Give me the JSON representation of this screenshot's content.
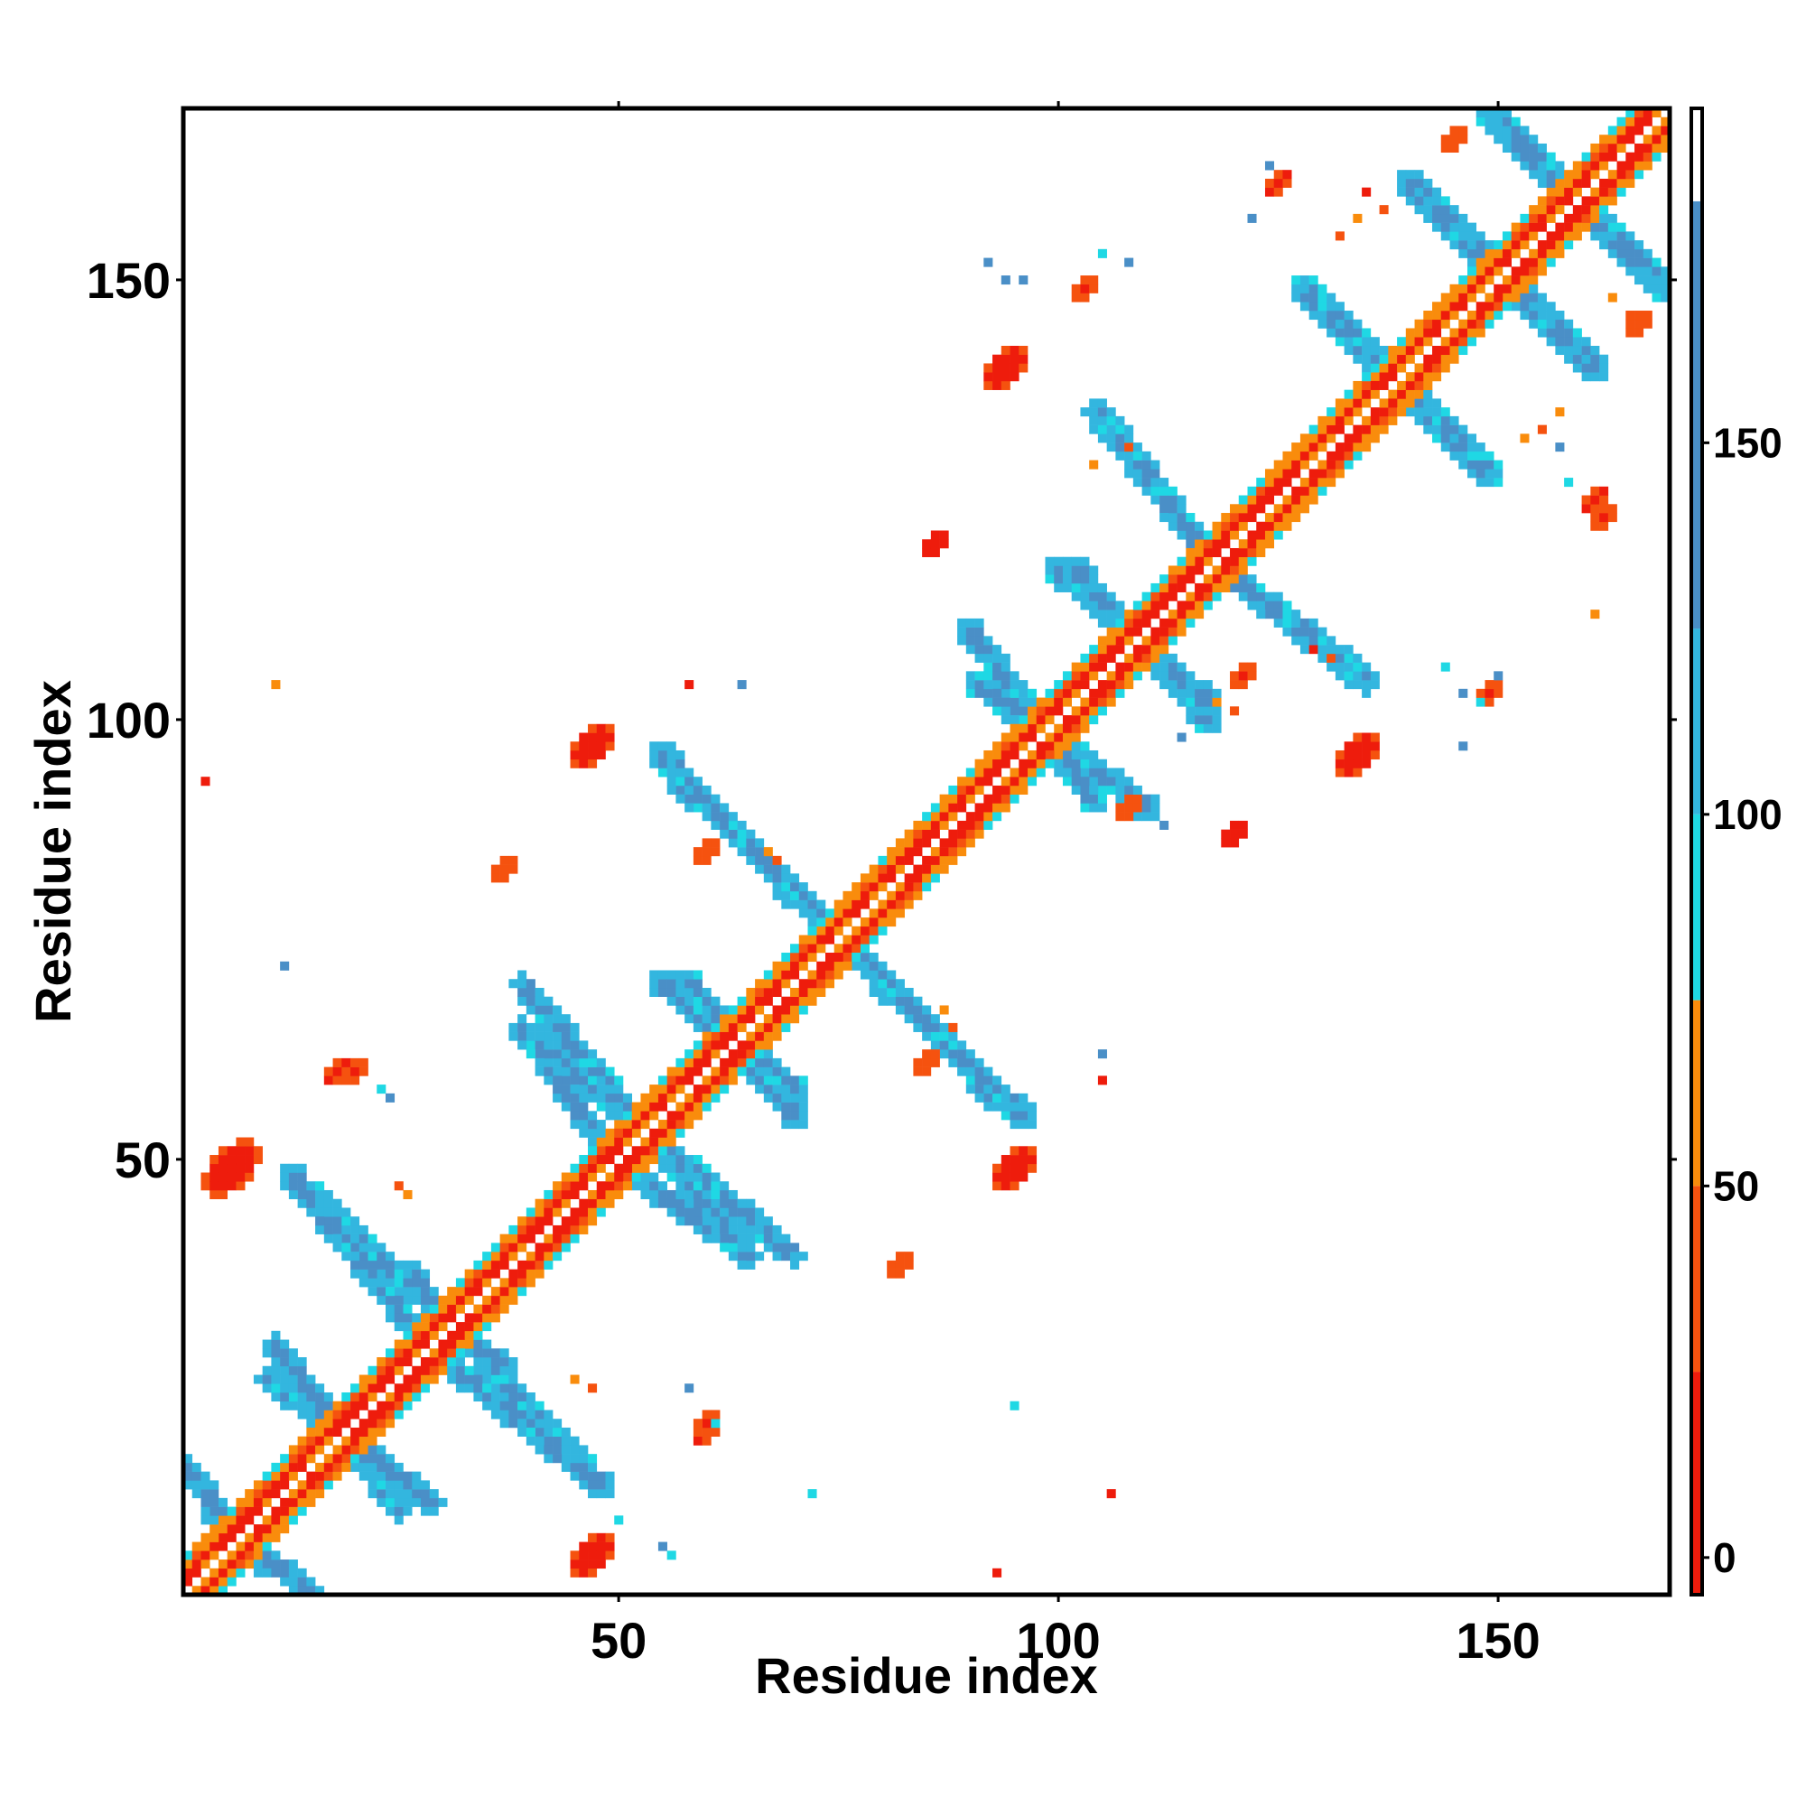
{
  "chart_data": {
    "type": "heatmap",
    "title": "",
    "xlabel": "Residue index",
    "ylabel": "Residue index",
    "xlim": [
      1,
      169
    ],
    "ylim": [
      1,
      169
    ],
    "xticks": [
      50,
      100,
      150
    ],
    "yticks": [
      50,
      100,
      150
    ],
    "grid": false,
    "colorbar": {
      "position": "right",
      "ticks": [
        0,
        50,
        100,
        150
      ],
      "range": [
        -5,
        195
      ],
      "bands": [
        {
          "from": -5,
          "to": 25,
          "color": "#ee1c0c"
        },
        {
          "from": 25,
          "to": 50,
          "color": "#f5520f"
        },
        {
          "from": 50,
          "to": 75,
          "color": "#f98c0c"
        },
        {
          "from": 75,
          "to": 100,
          "color": "#1fd8e4"
        },
        {
          "from": 100,
          "to": 125,
          "color": "#33b6df"
        },
        {
          "from": 125,
          "to": 182.5,
          "color": "#4a8fc7"
        },
        {
          "from": 182.5,
          "to": 195,
          "color": "#ffffff"
        }
      ]
    },
    "diagonal_band": {
      "value": 10,
      "color": "#ee1c0c",
      "accent_value": 60,
      "accent_color": "#f98c0c",
      "halfwidth": 2
    },
    "segments": [
      {
        "from": [
          4,
          9
        ],
        "to": [
          15,
          1
        ],
        "value": 140,
        "color": "#4a8fc7",
        "halfwidth": 1.4
      },
      {
        "from": [
          10,
          25
        ],
        "to": [
          29,
          11
        ],
        "value": 140,
        "color": "#4a8fc7",
        "halfwidth": 1.4
      },
      {
        "from": [
          15,
          46
        ],
        "to": [
          37,
          26
        ],
        "value": 140,
        "color": "#4a8fc7",
        "halfwidth": 1.5
      },
      {
        "from": [
          28,
          29
        ],
        "to": [
          48,
          13
        ],
        "value": 140,
        "color": "#4a8fc7",
        "halfwidth": 1.5
      },
      {
        "from": [
          39,
          65
        ],
        "to": [
          70,
          39
        ],
        "value": 140,
        "color": "#4a8fc7",
        "halfwidth": 1.4
      },
      {
        "from": [
          55,
          70
        ],
        "to": [
          70,
          58
        ],
        "value": 140,
        "color": "#4a8fc7",
        "halfwidth": 1.5
      },
      {
        "from": [
          52,
          48
        ],
        "to": [
          65,
          39
        ],
        "value": 140,
        "color": "#4a8fc7",
        "halfwidth": 1.4
      },
      {
        "from": [
          55,
          96
        ],
        "to": [
          70,
          80
        ],
        "value": 140,
        "color": "#4a8fc7",
        "halfwidth": 1.5
      },
      {
        "from": [
          75,
          76
        ],
        "to": [
          93,
          57
        ],
        "value": 140,
        "color": "#4a8fc7",
        "halfwidth": 1.5
      },
      {
        "from": [
          90,
          110
        ],
        "to": [
          104,
          91
        ],
        "value": 140,
        "color": "#4a8fc7",
        "halfwidth": 1.5
      },
      {
        "from": [
          100,
          117
        ],
        "to": [
          117,
          102
        ],
        "value": 140,
        "color": "#4a8fc7",
        "halfwidth": 1.5
      },
      {
        "from": [
          104,
          135
        ],
        "to": [
          118,
          118
        ],
        "value": 140,
        "color": "#4a8fc7",
        "halfwidth": 1.4
      },
      {
        "from": [
          117,
          118
        ],
        "to": [
          135,
          105
        ],
        "value": 140,
        "color": "#4a8fc7",
        "halfwidth": 1.4
      },
      {
        "from": [
          128,
          149
        ],
        "to": [
          146,
          131
        ],
        "value": 140,
        "color": "#4a8fc7",
        "halfwidth": 1.5
      },
      {
        "from": [
          140,
          161
        ],
        "to": [
          158,
          143
        ],
        "value": 140,
        "color": "#4a8fc7",
        "halfwidth": 1.5
      },
      {
        "from": [
          149,
          169
        ],
        "to": [
          168,
          150
        ],
        "value": 140,
        "color": "#4a8fc7",
        "halfwidth": 1.5
      }
    ],
    "blobs": [
      {
        "cx": 6,
        "cy": 49,
        "rx": 4,
        "ry": 2.2,
        "color": "#ee1c0c",
        "value": 10
      },
      {
        "cx": 47,
        "cy": 5,
        "rx": 3.5,
        "ry": 2,
        "color": "#ee1c0c",
        "value": 10
      },
      {
        "cx": 47,
        "cy": 97,
        "rx": 3.5,
        "ry": 2,
        "color": "#ee1c0c",
        "value": 10
      },
      {
        "cx": 95,
        "cy": 49,
        "rx": 3.5,
        "ry": 2,
        "color": "#ee1c0c",
        "value": 10
      },
      {
        "cx": 94,
        "cy": 140,
        "rx": 3.5,
        "ry": 2,
        "color": "#ee1c0c",
        "value": 10
      },
      {
        "cx": 134,
        "cy": 96,
        "rx": 3.5,
        "ry": 2,
        "color": "#ee1c0c",
        "value": 10
      },
      {
        "cx": 37,
        "cy": 83,
        "rx": 2,
        "ry": 1.2,
        "color": "#f5520f",
        "value": 35
      },
      {
        "cx": 82,
        "cy": 38,
        "rx": 2,
        "ry": 1.2,
        "color": "#f5520f",
        "value": 35
      },
      {
        "cx": 18,
        "cy": 60,
        "rx": 2,
        "ry": 1,
        "color": "#ee1c0c",
        "value": 10
      },
      {
        "cx": 60,
        "cy": 19,
        "rx": 2,
        "ry": 1,
        "color": "#ee1c0c",
        "value": 10
      },
      {
        "cx": 86,
        "cy": 120,
        "rx": 2,
        "ry": 1.1,
        "color": "#ee1c0c",
        "value": 10
      },
      {
        "cx": 120,
        "cy": 87,
        "rx": 2,
        "ry": 1.1,
        "color": "#ee1c0c",
        "value": 10
      },
      {
        "cx": 125,
        "cy": 161,
        "rx": 2,
        "ry": 1,
        "color": "#ee1c0c",
        "value": 10
      },
      {
        "cx": 161,
        "cy": 125,
        "rx": 2,
        "ry": 1,
        "color": "#ee1c0c",
        "value": 10
      },
      {
        "cx": 145,
        "cy": 166,
        "rx": 1.8,
        "ry": 1,
        "color": "#f5520f",
        "value": 35
      },
      {
        "cx": 166,
        "cy": 145,
        "rx": 1.8,
        "ry": 1,
        "color": "#f5520f",
        "value": 35
      },
      {
        "cx": 103,
        "cy": 149,
        "rx": 1.5,
        "ry": 1,
        "color": "#ee1c0c",
        "value": 10
      },
      {
        "cx": 149,
        "cy": 103,
        "rx": 1.5,
        "ry": 1,
        "color": "#ee1c0c",
        "value": 10
      },
      {
        "cx": 60,
        "cy": 85,
        "rx": 1.5,
        "ry": 1,
        "color": "#f5520f",
        "value": 35
      },
      {
        "cx": 85,
        "cy": 61,
        "rx": 1.5,
        "ry": 1,
        "color": "#f5520f",
        "value": 35
      },
      {
        "cx": 60,
        "cy": 20,
        "rx": 1.5,
        "ry": 1,
        "color": "#ee1c0c",
        "value": 10
      },
      {
        "cx": 20,
        "cy": 60,
        "rx": 1.5,
        "ry": 1,
        "color": "#ee1c0c",
        "value": 10
      },
      {
        "cx": 121,
        "cy": 105,
        "rx": 1.5,
        "ry": 1,
        "color": "#ee1c0c",
        "value": 10
      },
      {
        "cx": 108,
        "cy": 90,
        "rx": 1.5,
        "ry": 1,
        "color": "#f5520f",
        "value": 35
      },
      {
        "cx": 162,
        "cy": 123,
        "rx": 1.5,
        "ry": 1,
        "color": "#ee1c0c",
        "value": 10
      }
    ],
    "points": [
      [
        3,
        93,
        "#ee1c0c"
      ],
      [
        58,
        104,
        "#ee1c0c"
      ],
      [
        64,
        104,
        "#4a8fc7"
      ],
      [
        93,
        3,
        "#ee1c0c"
      ],
      [
        105,
        59,
        "#ee1c0c"
      ],
      [
        105,
        62,
        "#4a8fc7"
      ],
      [
        112,
        88,
        "#4a8fc7"
      ],
      [
        114,
        98,
        "#4a8fc7"
      ],
      [
        12,
        72,
        "#4a8fc7"
      ],
      [
        72,
        12,
        "#1fd8e4"
      ],
      [
        23,
        58,
        "#1fd8e4"
      ],
      [
        24,
        57,
        "#4a8fc7"
      ],
      [
        58,
        24,
        "#4a8fc7"
      ],
      [
        61,
        20,
        "#1fd8e4"
      ],
      [
        55,
        6,
        "#4a8fc7"
      ],
      [
        56,
        5,
        "#1fd8e4"
      ],
      [
        92,
        152,
        "#4a8fc7"
      ],
      [
        94,
        150,
        "#4a8fc7"
      ],
      [
        96,
        150,
        "#4a8fc7"
      ],
      [
        105,
        153,
        "#1fd8e4"
      ],
      [
        108,
        152,
        "#4a8fc7"
      ],
      [
        122,
        157,
        "#4a8fc7"
      ],
      [
        124,
        163,
        "#4a8fc7"
      ],
      [
        146,
        103,
        "#4a8fc7"
      ],
      [
        148,
        102,
        "#1fd8e4"
      ],
      [
        144,
        106,
        "#1fd8e4"
      ],
      [
        146,
        97,
        "#4a8fc7"
      ],
      [
        150,
        105,
        "#4a8fc7"
      ],
      [
        158,
        127,
        "#1fd8e4"
      ],
      [
        153,
        132,
        "#f98c0c"
      ],
      [
        157,
        131,
        "#4a8fc7"
      ],
      [
        161,
        112,
        "#f98c0c"
      ],
      [
        106,
        12,
        "#ee1c0c"
      ],
      [
        11,
        104,
        "#f98c0c"
      ],
      [
        95,
        22,
        "#1fd8e4"
      ],
      [
        50,
        9,
        "#1fd8e4"
      ],
      [
        26,
        46,
        "#f98c0c"
      ],
      [
        25,
        47,
        "#f5520f"
      ],
      [
        45,
        25,
        "#f98c0c"
      ],
      [
        47,
        24,
        "#f5520f"
      ],
      [
        67,
        85,
        "#f98c0c"
      ],
      [
        68,
        84,
        "#f5520f"
      ],
      [
        87,
        67,
        "#f98c0c"
      ],
      [
        88,
        65,
        "#f5520f"
      ],
      [
        118,
        102,
        "#f98c0c"
      ],
      [
        120,
        101,
        "#f5520f"
      ],
      [
        129,
        108,
        "#ee1c0c"
      ],
      [
        131,
        107,
        "#f5520f"
      ],
      [
        132,
        155,
        "#f5520f"
      ],
      [
        134,
        157,
        "#f98c0c"
      ],
      [
        155,
        133,
        "#f5520f"
      ],
      [
        157,
        135,
        "#f98c0c"
      ],
      [
        163,
        148,
        "#f98c0c"
      ],
      [
        165,
        146,
        "#f5520f"
      ],
      [
        104,
        129,
        "#f98c0c"
      ],
      [
        108,
        131,
        "#f5520f"
      ],
      [
        135,
        160,
        "#ee1c0c"
      ],
      [
        137,
        158,
        "#f5520f"
      ]
    ]
  }
}
